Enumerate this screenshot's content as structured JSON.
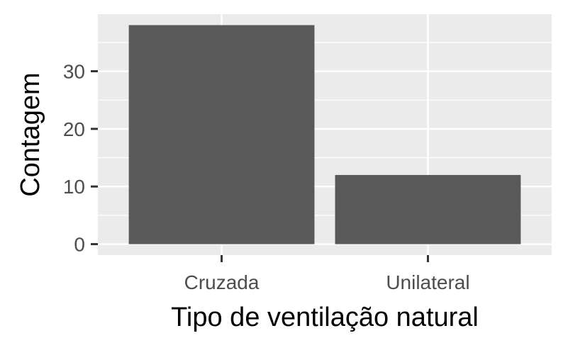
{
  "chart_data": {
    "type": "bar",
    "categories": [
      "Cruzada",
      "Unilateral"
    ],
    "values": [
      38,
      12
    ],
    "title": "",
    "xlabel": "Tipo de ventilação natural",
    "ylabel": "Contagem",
    "ylim": [
      -1.9,
      39.9
    ],
    "yticks": [
      0,
      10,
      20,
      30
    ],
    "ytick_labels": [
      "0",
      "10",
      "20",
      "30"
    ],
    "grid": true,
    "legend": "none",
    "colors": {
      "panel_background": "#ebebeb",
      "grid_line": "#ffffff",
      "bar_fill": "#595959",
      "tick_mark": "#333333",
      "tick_label": "#4d4d4d",
      "axis_title": "#000000"
    }
  }
}
